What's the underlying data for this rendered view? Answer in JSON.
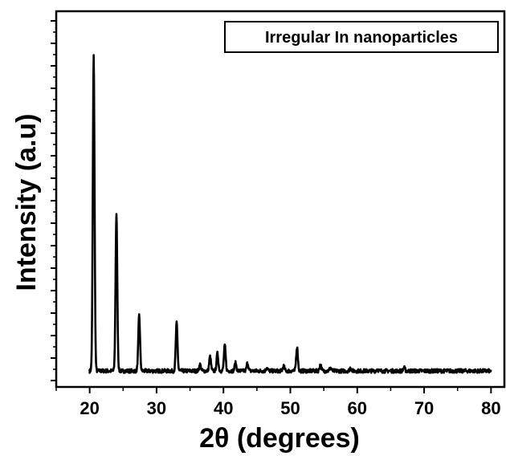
{
  "chart_data": {
    "type": "line",
    "xlabel": "2θ (degrees)",
    "ylabel": "Intensity (a.u)",
    "xlim": [
      15,
      82
    ],
    "ylim": [
      0,
      1
    ],
    "x_ticks": [
      20,
      30,
      40,
      50,
      60,
      70,
      80
    ],
    "y_tick_labels_shown": false,
    "grid": false,
    "legend_position": "top-right",
    "series": [
      {
        "name": "Irregular In nanoparticles",
        "baseline": 0.01,
        "peaks": [
          {
            "x": 20.6,
            "y": 1.0
          },
          {
            "x": 24.0,
            "y": 0.5
          },
          {
            "x": 27.4,
            "y": 0.185
          },
          {
            "x": 33.0,
            "y": 0.16
          },
          {
            "x": 36.5,
            "y": 0.03
          },
          {
            "x": 38.0,
            "y": 0.055
          },
          {
            "x": 39.1,
            "y": 0.065
          },
          {
            "x": 40.2,
            "y": 0.09
          },
          {
            "x": 41.8,
            "y": 0.035
          },
          {
            "x": 43.6,
            "y": 0.035
          },
          {
            "x": 46.5,
            "y": 0.02
          },
          {
            "x": 49.0,
            "y": 0.025
          },
          {
            "x": 51.0,
            "y": 0.085
          },
          {
            "x": 54.5,
            "y": 0.03
          },
          {
            "x": 56.0,
            "y": 0.02
          },
          {
            "x": 59.0,
            "y": 0.02
          },
          {
            "x": 63.0,
            "y": 0.015
          },
          {
            "x": 67.0,
            "y": 0.02
          }
        ]
      }
    ],
    "color": "#000000"
  }
}
